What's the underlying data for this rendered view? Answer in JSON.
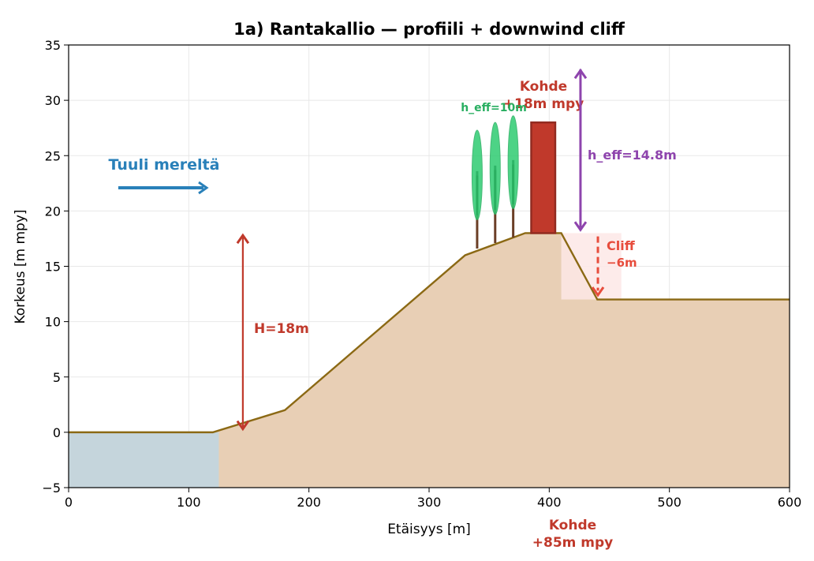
{
  "chart_data": {
    "type": "area",
    "title": "1a) Rantakallio — profiili + downwind cliff",
    "xlabel": "Etäisyys [m]",
    "ylabel": "Korkeus [m mpy]",
    "xlim": [
      0,
      600
    ],
    "ylim": [
      -5,
      35
    ],
    "xticks": [
      0,
      100,
      200,
      300,
      400,
      500,
      600
    ],
    "yticks": [
      -5,
      0,
      5,
      10,
      15,
      20,
      25,
      30,
      35
    ],
    "grid": true,
    "terrain": {
      "x": [
        0,
        120,
        180,
        330,
        380,
        410,
        440,
        600
      ],
      "y": [
        0,
        0,
        2,
        16,
        18,
        18,
        12,
        12
      ],
      "fill": "#e8cfb5",
      "line": "#8b6914"
    },
    "water": {
      "x_end": 125,
      "y_top": 0,
      "color": "#c5d5dc"
    },
    "trees": [
      {
        "x": 340,
        "base": 16.6,
        "top": 27.3
      },
      {
        "x": 355,
        "base": 17.1,
        "top": 28.0
      },
      {
        "x": 370,
        "base": 17.6,
        "top": 28.6
      }
    ],
    "building": {
      "x0": 385,
      "x1": 405,
      "y0": 18,
      "y1": 28,
      "color": "#c0392b"
    },
    "cliff_zone": {
      "x0": 410,
      "x1": 460,
      "y0": 12,
      "y1": 18,
      "color": "#fde8e6"
    },
    "annotations": {
      "wind_label": "Tuuli mereltä",
      "height_label": "H=18m",
      "kohde_top_line1": "Kohde",
      "kohde_top_line2": "+18m mpy",
      "tree_label": "h_eff=10m",
      "heff_label": "h_eff=14.8m",
      "cliff_line1": "Cliff",
      "cliff_line2": "−6m",
      "kohde_bottom_line1": "Kohde",
      "kohde_bottom_line2": "+85m mpy"
    },
    "colors": {
      "wind": "#2980b9",
      "height": "#c0392b",
      "tree": "#2ecc71",
      "trunk": "#6b3e26",
      "heff": "#8e44ad",
      "cliff": "#e74c3c"
    }
  }
}
